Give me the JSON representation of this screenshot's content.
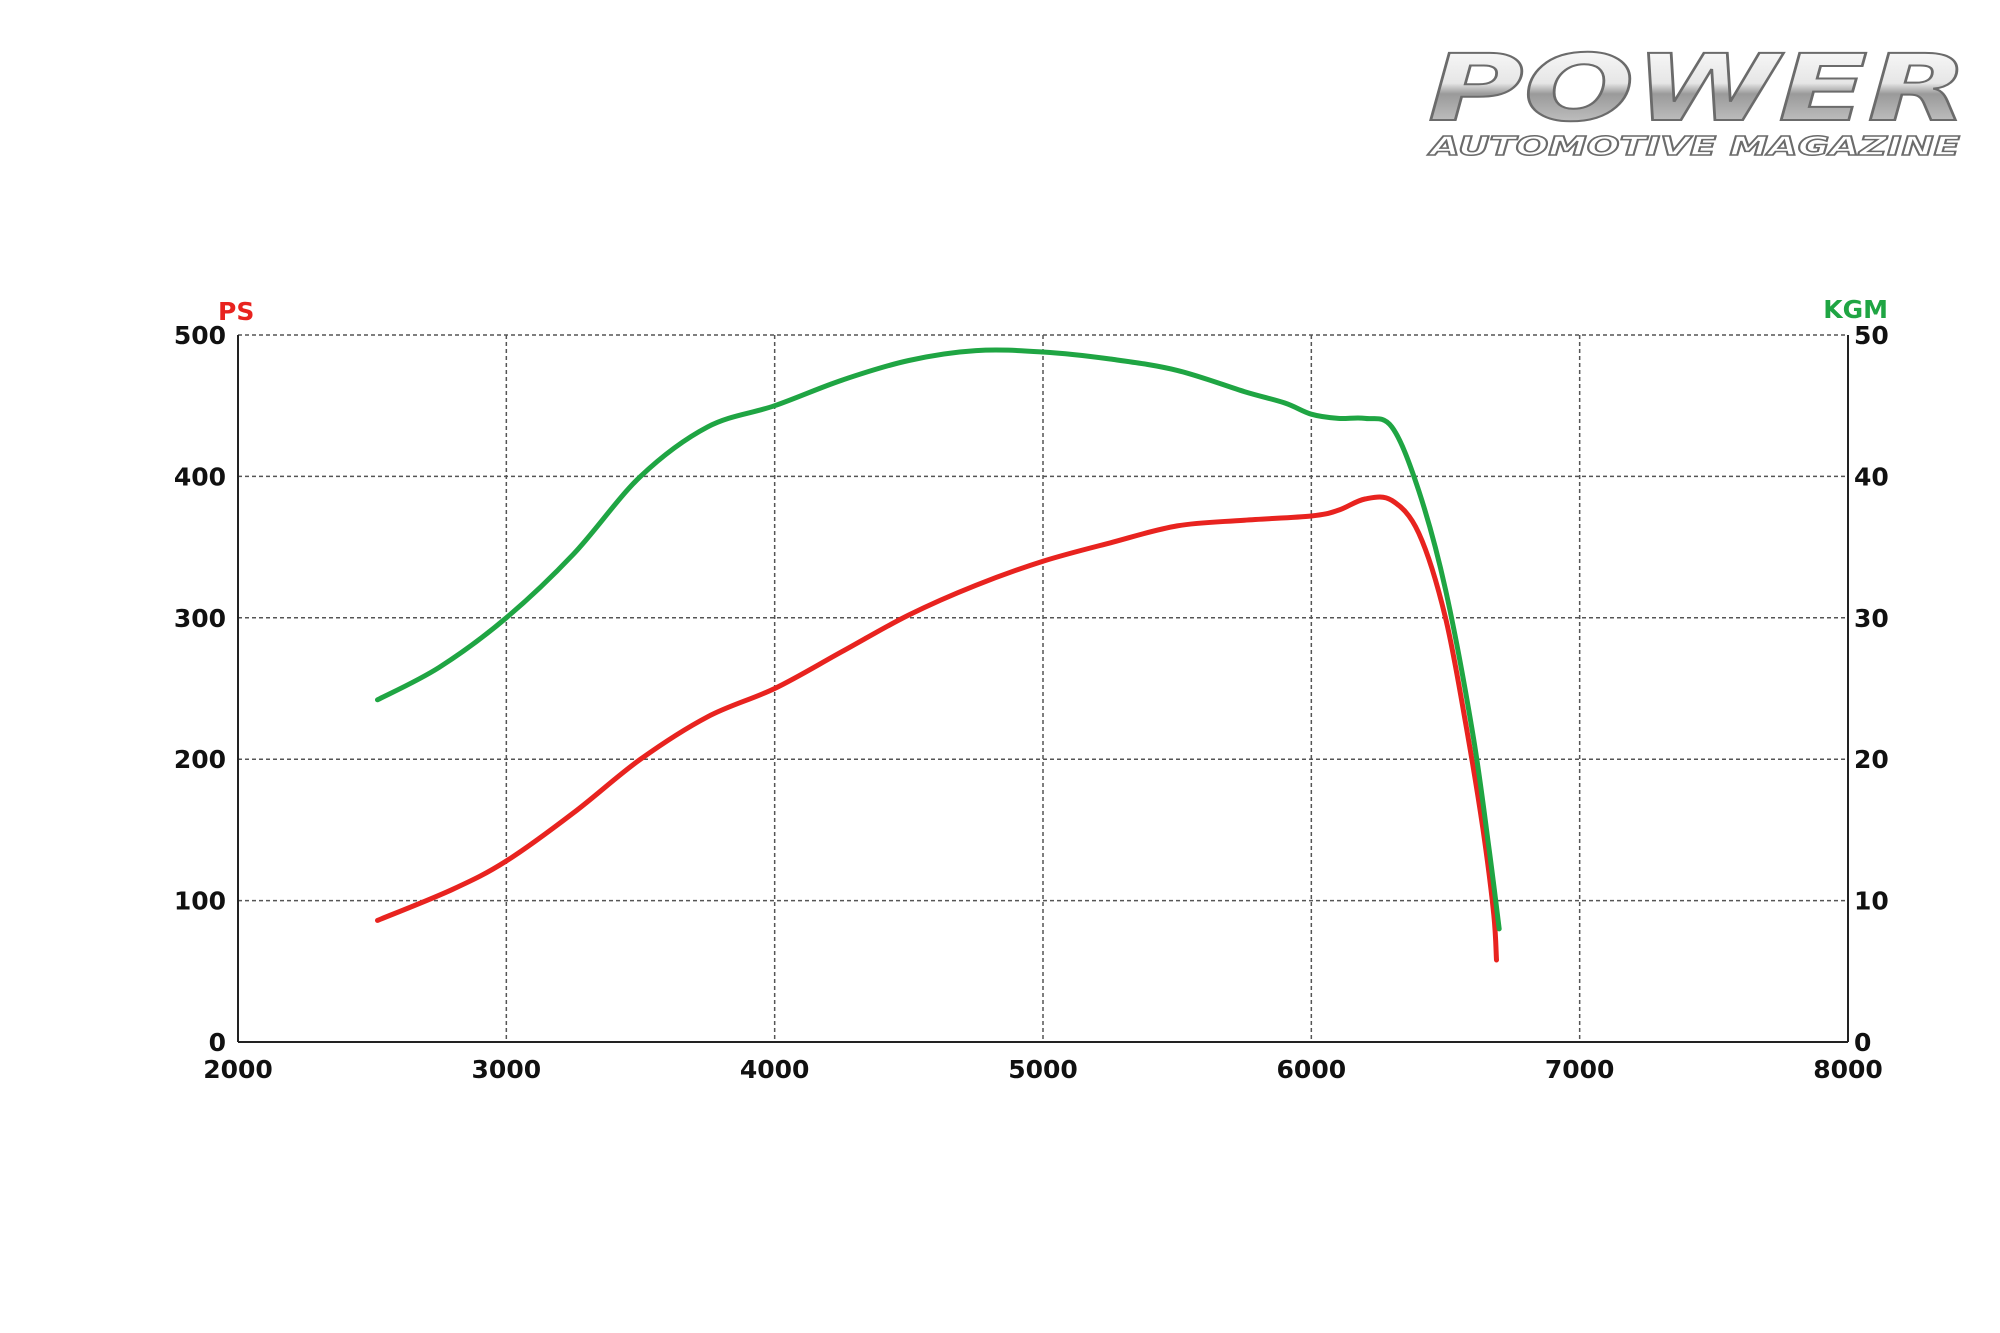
{
  "logo": {
    "title": "POWER",
    "subtitle": "AUTOMOTIVE MAGAZINE"
  },
  "chart_data": {
    "type": "line",
    "x_axis": {
      "range": [
        2000,
        8000
      ],
      "ticks": [
        "2000",
        "3000",
        "4000",
        "5000",
        "6000",
        "7000",
        "8000"
      ]
    },
    "y_left": {
      "label": "PS",
      "range": [
        0,
        500
      ],
      "ticks": [
        "0",
        "100",
        "200",
        "300",
        "400",
        "500"
      ]
    },
    "y_right": {
      "label": "KGM",
      "range": [
        0,
        50
      ],
      "ticks": [
        "0",
        "10",
        "20",
        "30",
        "40",
        "50"
      ]
    },
    "grid": true,
    "colors": {
      "power": "#e8231f",
      "torque": "#1fa543"
    },
    "series": [
      {
        "axis": "left",
        "color": "#e8231f",
        "x": [
          2520,
          2800,
          3000,
          3250,
          3500,
          3750,
          4000,
          4250,
          4500,
          4750,
          5000,
          5250,
          5500,
          5750,
          6000,
          6100,
          6200,
          6300,
          6400,
          6500,
          6580,
          6640,
          6680,
          6690
        ],
        "y": [
          86,
          108,
          128,
          162,
          200,
          230,
          250,
          276,
          302,
          323,
          340,
          353,
          365,
          369,
          372,
          376,
          384,
          383,
          360,
          300,
          220,
          150,
          90,
          58
        ]
      },
      {
        "axis": "right",
        "color": "#1fa543",
        "x": [
          2520,
          2750,
          3000,
          3250,
          3500,
          3750,
          4000,
          4250,
          4500,
          4750,
          5000,
          5250,
          5500,
          5750,
          5900,
          6000,
          6100,
          6200,
          6300,
          6400,
          6500,
          6600,
          6660,
          6700
        ],
        "y": [
          24.2,
          26.5,
          30.0,
          34.5,
          40.0,
          43.5,
          45.0,
          46.8,
          48.2,
          48.9,
          48.8,
          48.3,
          47.5,
          46.0,
          45.2,
          44.4,
          44.1,
          44.1,
          43.5,
          39.0,
          32.0,
          22.0,
          14.0,
          8.0
        ]
      }
    ]
  }
}
